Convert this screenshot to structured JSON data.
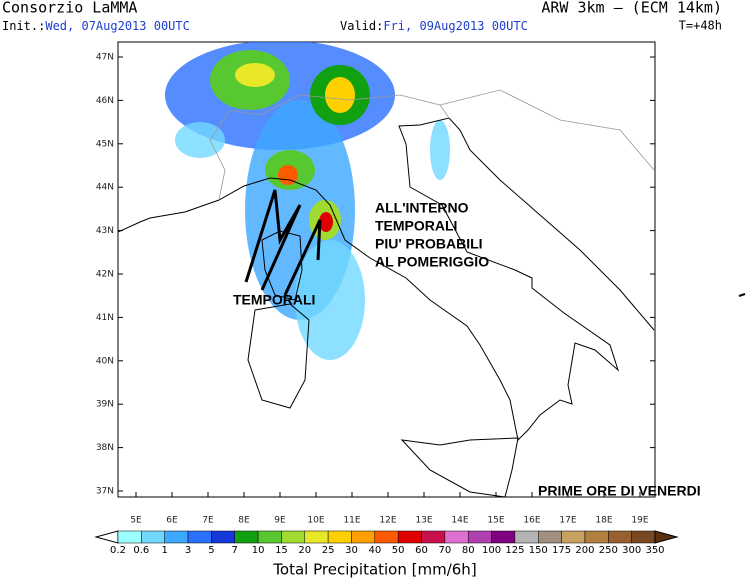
{
  "header": {
    "left_title": "Consorzio LaMMA",
    "right_title": "ARW 3km – (ECM 14km)",
    "init_label": "Init.:",
    "init_value": "Wed, 07Aug2013 00UTC",
    "valid_label": "Valid:",
    "valid_value": "Fri, 09Aug2013 00UTC",
    "lead_time": "T=+48h"
  },
  "map": {
    "lat_ticks": [
      "47N",
      "46N",
      "45N",
      "44N",
      "43N",
      "42N",
      "41N",
      "40N",
      "39N",
      "38N",
      "37N"
    ],
    "lon_ticks": [
      "5E",
      "6E",
      "7E",
      "8E",
      "9E",
      "10E",
      "11E",
      "12E",
      "13E",
      "14E",
      "15E",
      "16E",
      "17E",
      "18E",
      "19E"
    ]
  },
  "annotations": {
    "interior": [
      "ALL'INTERNO",
      "TEMPORALI",
      "PIU' PROBABILI",
      "AL POMERIGGIO"
    ],
    "coast": "TEMPORALI",
    "timing": "PRIME ORE DI VENERDI"
  },
  "colorbar": {
    "title": "Total Precipitation [mm/6h]",
    "levels": [
      0.2,
      0.6,
      1,
      3,
      5,
      7,
      10,
      15,
      20,
      25,
      30,
      40,
      50,
      60,
      70,
      80,
      100,
      125,
      150,
      175,
      200,
      250,
      300,
      350
    ],
    "colors": [
      "#ffffff",
      "#9effff",
      "#70d8ff",
      "#3ca8ff",
      "#2a70ff",
      "#1438d8",
      "#10a010",
      "#58c830",
      "#a0dc30",
      "#e8e828",
      "#ffd000",
      "#ffa000",
      "#ff5a00",
      "#e00000",
      "#c8104a",
      "#e070d0",
      "#b040b0",
      "#800080",
      "#b4b4b4",
      "#a09080",
      "#c8a060",
      "#b08040",
      "#986030",
      "#7a4820",
      "#5a3010"
    ]
  }
}
